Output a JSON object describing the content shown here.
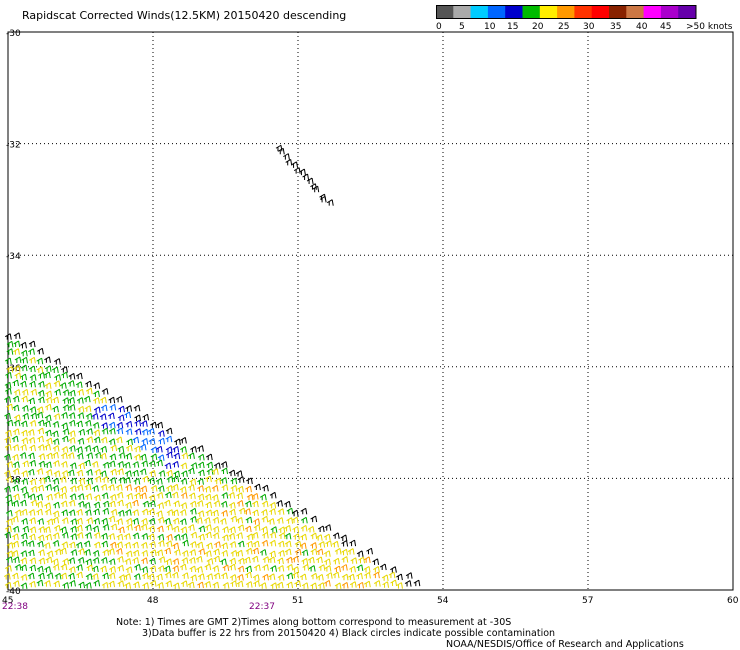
{
  "title": "Rapidscat Corrected Winds(12.5KM) 20150420 descending",
  "legend": {
    "colors": [
      "#555555",
      "#aaaaaa",
      "#00ccff",
      "#0066ff",
      "#0000cc",
      "#00bb00",
      "#ffee00",
      "#ff9900",
      "#ff3300",
      "#ff0000",
      "#882200",
      "#cc7744",
      "#ff00ff",
      "#aa00cc",
      "#6600aa"
    ],
    "labels": [
      "0",
      "5",
      "10",
      "15",
      "20",
      "25",
      "30",
      "35",
      "40",
      "45",
      ">50 knots"
    ]
  },
  "map": {
    "x_labels": [
      "45",
      "48",
      "51",
      "54",
      "57",
      "60"
    ],
    "y_labels": [
      "-30",
      "-32",
      "-34",
      "-36",
      "-38",
      "-40"
    ],
    "time_labels": [
      "22:38",
      "22:37"
    ],
    "time_color": "#800080"
  },
  "notes": [
    "Note: 1) Times are GMT 2)Times along bottom correspond to measurement at -30S",
    "3)Data buffer is 22 hrs from 20150420 4) Black circles indicate possible contamination",
    "NOAA/NESDIS/Office of Research and Applications"
  ]
}
